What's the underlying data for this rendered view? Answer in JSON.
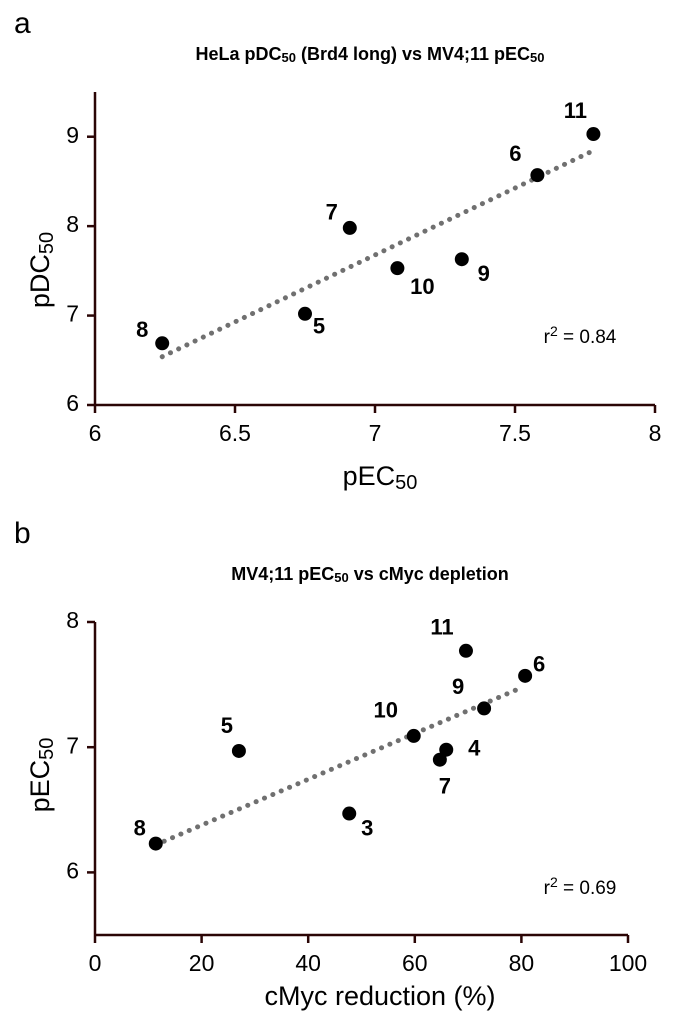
{
  "chart_data": [
    {
      "type": "scatter",
      "panel": "a",
      "title": [
        "HeLa pDC",
        "50",
        " (Brd4 long) vs MV4;11 pEC",
        "50"
      ],
      "xlabel": [
        "pEC",
        "50"
      ],
      "ylabel": [
        "pDC",
        "50"
      ],
      "annotation": [
        "r",
        "2",
        " = 0.84"
      ],
      "xlim": [
        6,
        8
      ],
      "xticks": [
        6,
        6.5,
        7,
        7.5,
        8
      ],
      "ylim": [
        6,
        9.5
      ],
      "yticks": [
        6,
        7,
        8,
        9
      ],
      "color": "#000000",
      "labels": [
        "8",
        "5",
        "7",
        "10",
        "9",
        "6",
        "11"
      ],
      "x": [
        6.24,
        6.75,
        6.91,
        7.08,
        7.31,
        7.58,
        7.78
      ],
      "y": [
        6.69,
        7.02,
        7.98,
        7.53,
        7.63,
        8.57,
        9.03
      ],
      "trend": {
        "color": "#707070",
        "x": [
          6.24,
          7.77
        ],
        "y": [
          6.54,
          8.83
        ]
      }
    },
    {
      "type": "scatter",
      "panel": "b",
      "title": [
        "MV4;11 pEC",
        "50",
        " vs cMyc depletion"
      ],
      "xlabel": [
        "cMyc reduction (%)"
      ],
      "ylabel": [
        "pEC",
        "50"
      ],
      "annotation": [
        "r",
        "2",
        " = 0.69"
      ],
      "xlim": [
        0,
        100
      ],
      "xticks": [
        0,
        20,
        40,
        60,
        80,
        100
      ],
      "ylim": [
        5.5,
        8
      ],
      "yticks": [
        6,
        7,
        8
      ],
      "color": "#000000",
      "labels": [
        "8",
        "5",
        "3",
        "10",
        "7",
        "4",
        "9",
        "11",
        "6"
      ],
      "x": [
        11.4,
        27,
        47.7,
        59.8,
        64.7,
        65.9,
        73,
        69.6,
        80.7
      ],
      "y": [
        6.23,
        6.97,
        6.47,
        7.09,
        6.9,
        6.98,
        7.31,
        7.77,
        7.57
      ],
      "trend": {
        "color": "#707070",
        "x": [
          11.4,
          79.7
        ],
        "y": [
          6.22,
          7.47
        ]
      }
    }
  ]
}
